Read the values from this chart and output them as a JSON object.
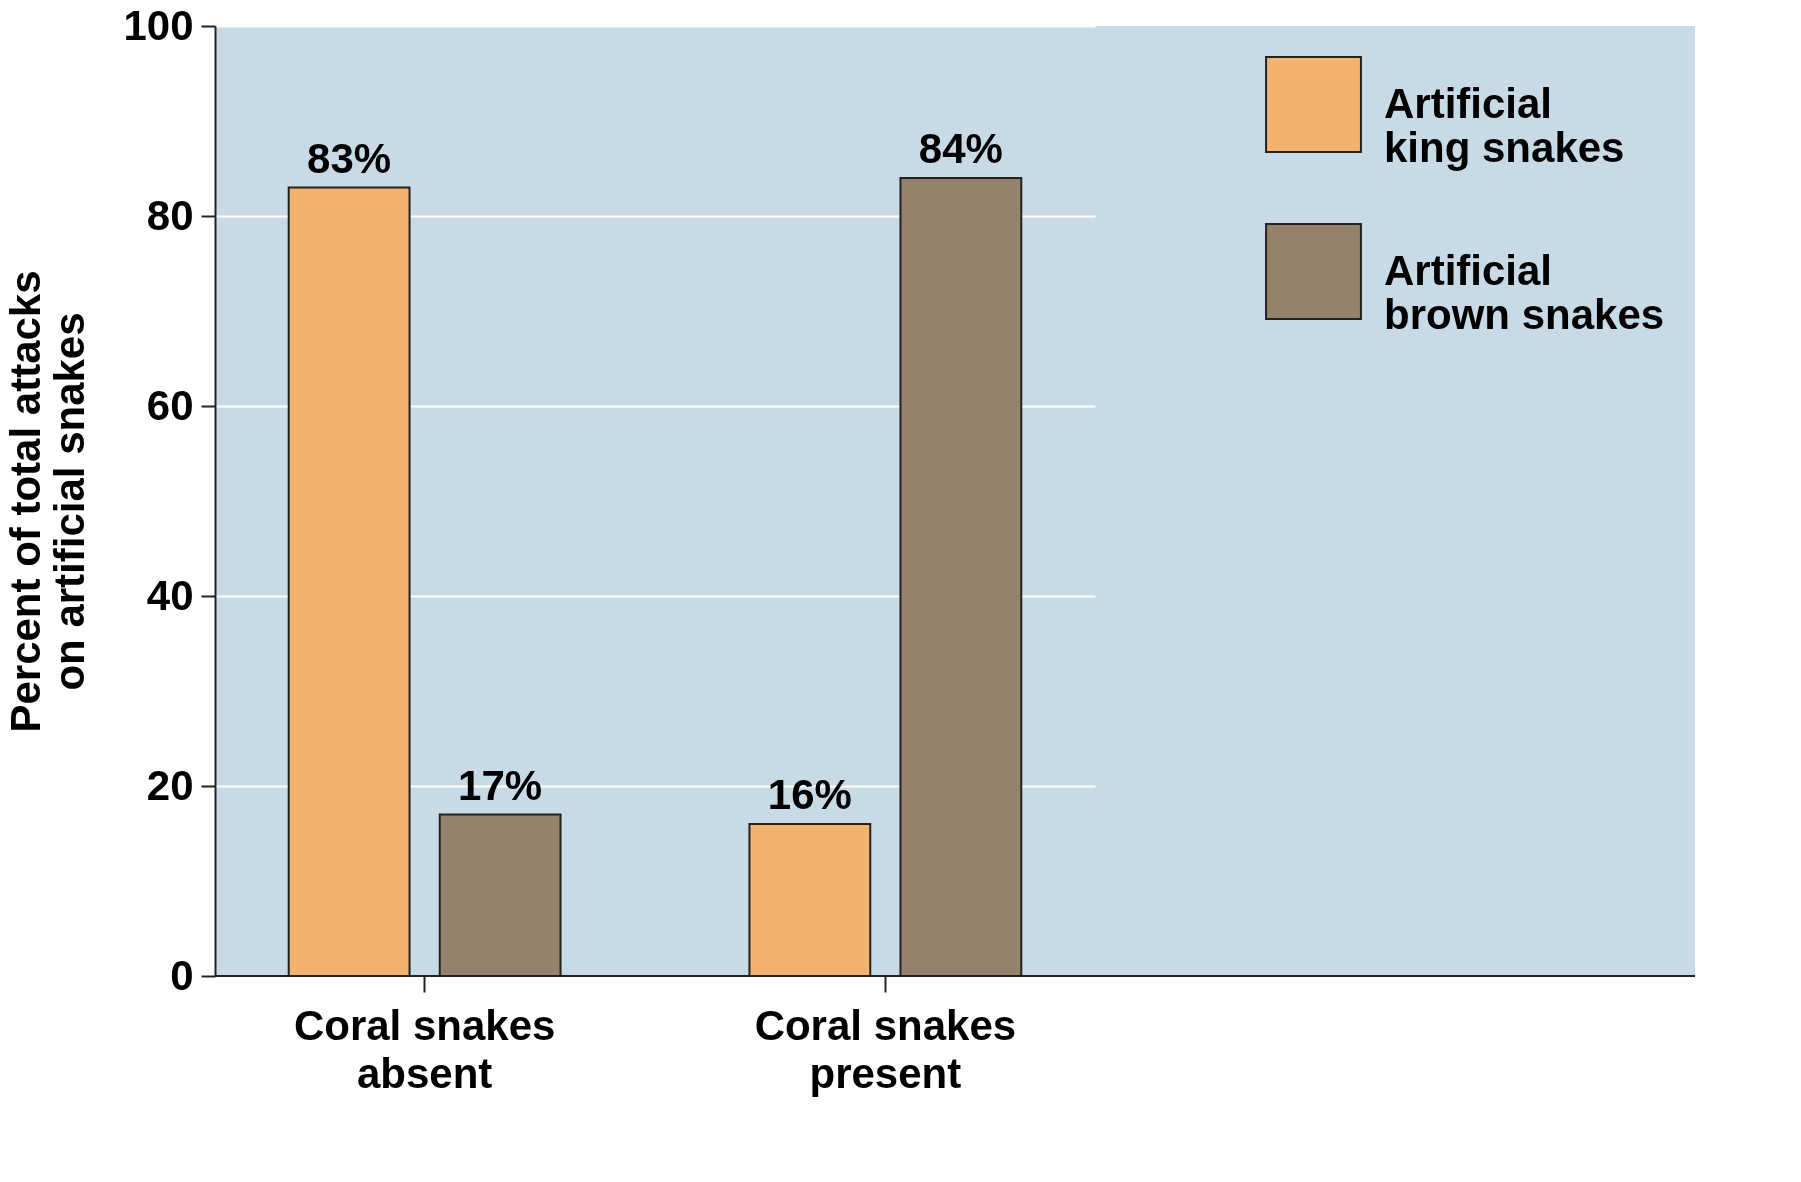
{
  "chart_data": {
    "type": "bar",
    "ylabel": "Percent of total attacks on artificial snakes",
    "categories": [
      "Coral snakes absent",
      "Coral snakes present"
    ],
    "series": [
      {
        "name": "Artificial king snakes",
        "color": "#f3b36e",
        "values": [
          83,
          16
        ],
        "value_labels": [
          "83%",
          "16%"
        ]
      },
      {
        "name": "Artificial brown snakes",
        "color": "#94826a",
        "values": [
          17,
          84
        ],
        "value_labels": [
          "17%",
          "84%"
        ]
      }
    ],
    "ylim": [
      0,
      100
    ],
    "yticks": [
      0,
      20,
      40,
      60,
      80,
      100
    ],
    "grid": "y",
    "legend": "top right"
  }
}
